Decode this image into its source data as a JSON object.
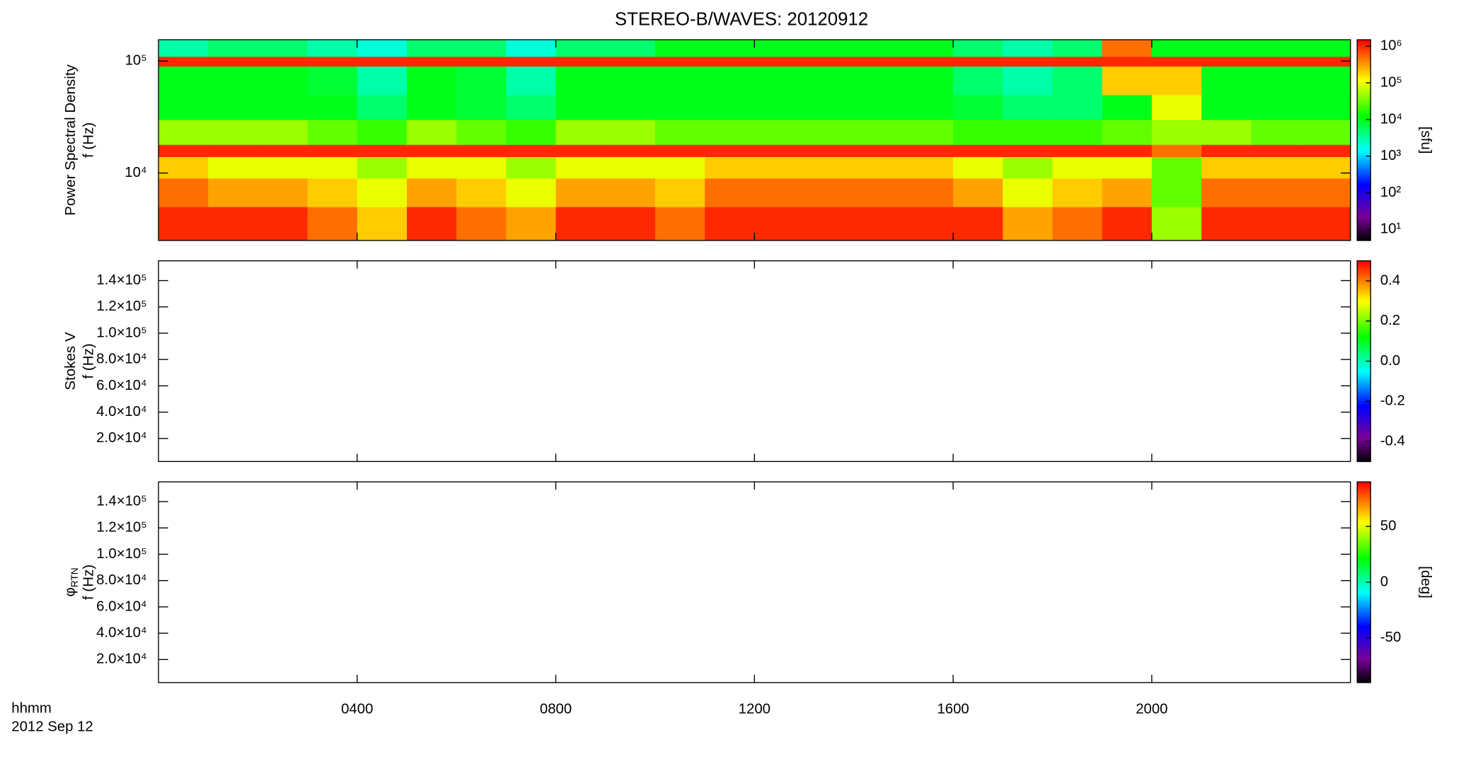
{
  "chart_data": [
    {
      "type": "heatmap",
      "title": "STEREO-B/WAVES: 20120912",
      "ylabel": [
        "Power Spectral Density",
        "f (Hz)"
      ],
      "ylog": true,
      "xlim": [
        0,
        24
      ],
      "ylim": [
        2500,
        155000
      ],
      "yticks": [
        {
          "value": 10000,
          "label": "10⁴"
        },
        {
          "value": 100000,
          "label": "10⁵"
        }
      ],
      "x_bins": [
        0,
        1,
        2,
        3,
        4,
        5,
        6,
        7,
        8,
        9,
        10,
        11,
        12,
        13,
        14,
        15,
        16,
        17,
        18,
        19,
        20,
        21,
        22,
        23,
        24
      ],
      "y_bins": [
        2500,
        5000,
        9000,
        14000,
        18000,
        30000,
        50000,
        90000,
        110000,
        155000
      ],
      "values": [
        [
          1000000,
          1000000,
          1000000,
          500000,
          200000,
          1000000,
          500000,
          300000,
          1000000,
          1000000,
          500000,
          1000000,
          1000000,
          1000000,
          1000000,
          1000000,
          1000000,
          300000,
          500000,
          1000000,
          50000,
          1000000,
          1000000,
          1000000
        ],
        [
          500000,
          300000,
          300000,
          200000,
          100000,
          300000,
          200000,
          100000,
          300000,
          300000,
          200000,
          500000,
          500000,
          500000,
          500000,
          500000,
          300000,
          100000,
          200000,
          300000,
          30000,
          500000,
          500000,
          500000
        ],
        [
          200000,
          100000,
          100000,
          100000,
          50000,
          100000,
          100000,
          50000,
          100000,
          100000,
          100000,
          200000,
          200000,
          200000,
          200000,
          200000,
          100000,
          50000,
          100000,
          100000,
          30000,
          200000,
          200000,
          200000
        ],
        [
          1000000,
          1000000,
          1000000,
          1000000,
          1000000,
          1000000,
          1000000,
          1000000,
          1000000,
          1000000,
          1000000,
          1000000,
          1000000,
          1000000,
          1000000,
          1000000,
          1000000,
          1000000,
          1000000,
          1000000,
          500000,
          1000000,
          1000000,
          1000000
        ],
        [
          50000,
          50000,
          50000,
          30000,
          20000,
          50000,
          30000,
          20000,
          50000,
          50000,
          30000,
          30000,
          30000,
          30000,
          30000,
          30000,
          20000,
          20000,
          20000,
          30000,
          50000,
          50000,
          30000,
          30000
        ],
        [
          10000,
          10000,
          10000,
          10000,
          5000,
          10000,
          8000,
          5000,
          10000,
          10000,
          10000,
          10000,
          10000,
          10000,
          10000,
          10000,
          8000,
          5000,
          5000,
          10000,
          100000,
          10000,
          10000,
          10000
        ],
        [
          10000,
          10000,
          10000,
          8000,
          3000,
          10000,
          8000,
          3000,
          10000,
          10000,
          10000,
          10000,
          10000,
          10000,
          10000,
          10000,
          5000,
          3000,
          5000,
          200000,
          200000,
          10000,
          10000,
          10000
        ],
        [
          1000000,
          1000000,
          1000000,
          1000000,
          1000000,
          1000000,
          1000000,
          1000000,
          1000000,
          1000000,
          1000000,
          1000000,
          1000000,
          1000000,
          1000000,
          1000000,
          1000000,
          1000000,
          1000000,
          1000000,
          1000000,
          1000000,
          1000000,
          1000000
        ],
        [
          3000,
          5000,
          5000,
          3000,
          2000,
          5000,
          5000,
          2000,
          5000,
          5000,
          10000,
          10000,
          10000,
          10000,
          10000,
          10000,
          5000,
          3000,
          5000,
          500000,
          10000,
          10000,
          10000,
          10000
        ]
      ],
      "colorbar": {
        "log": true,
        "zlim": [
          5,
          1500000
        ],
        "label": "[sfu]",
        "ticks": [
          {
            "value": 10,
            "label": "10¹"
          },
          {
            "value": 100,
            "label": "10²"
          },
          {
            "value": 1000,
            "label": "10³"
          },
          {
            "value": 10000,
            "label": "10⁴"
          },
          {
            "value": 100000,
            "label": "10⁵"
          },
          {
            "value": 1000000,
            "label": "10⁶"
          }
        ]
      }
    },
    {
      "type": "heatmap",
      "ylabel": [
        "Stokes V",
        "f (Hz)"
      ],
      "ylog": false,
      "xlim": [
        0,
        24
      ],
      "ylim": [
        2500,
        155000
      ],
      "yticks": [
        {
          "value": 20000,
          "label": "2.0×10⁴"
        },
        {
          "value": 40000,
          "label": "4.0×10⁴"
        },
        {
          "value": 60000,
          "label": "6.0×10⁴"
        },
        {
          "value": 80000,
          "label": "8.0×10⁴"
        },
        {
          "value": 100000,
          "label": "1.0×10⁵"
        },
        {
          "value": 120000,
          "label": "1.2×10⁵"
        },
        {
          "value": 140000,
          "label": "1.4×10⁵"
        }
      ],
      "colorbar": {
        "log": false,
        "zlim": [
          -0.5,
          0.5
        ],
        "ticks": [
          -0.4,
          -0.2,
          {
            "value": 0,
            "label": "0.0"
          },
          0.2,
          0.4
        ]
      }
    },
    {
      "type": "heatmap",
      "ylabel": [
        {
          "symbol": "φ",
          "subscript": "RTN"
        },
        "f (Hz)"
      ],
      "ylog": false,
      "xlim": [
        0,
        24
      ],
      "ylim": [
        2500,
        155000
      ],
      "yticks": [
        {
          "value": 20000,
          "label": "2.0×10⁴"
        },
        {
          "value": 40000,
          "label": "4.0×10⁴"
        },
        {
          "value": 60000,
          "label": "6.0×10⁴"
        },
        {
          "value": 80000,
          "label": "8.0×10⁴"
        },
        {
          "value": 100000,
          "label": "1.0×10⁵"
        },
        {
          "value": 120000,
          "label": "1.2×10⁵"
        },
        {
          "value": 140000,
          "label": "1.4×10⁵"
        }
      ],
      "xticks": [
        {
          "value": 4,
          "label": "0400"
        },
        {
          "value": 8,
          "label": "0800"
        },
        {
          "value": 12,
          "label": "1200"
        },
        {
          "value": 16,
          "label": "1600"
        },
        {
          "value": 20,
          "label": "2000"
        }
      ],
      "xlabel": [
        "hhmm",
        "2012 Sep 12"
      ],
      "colorbar": {
        "log": false,
        "zlim": [
          -90,
          90
        ],
        "label": "[deg]",
        "ticks": [
          -50,
          0,
          50
        ]
      }
    }
  ]
}
